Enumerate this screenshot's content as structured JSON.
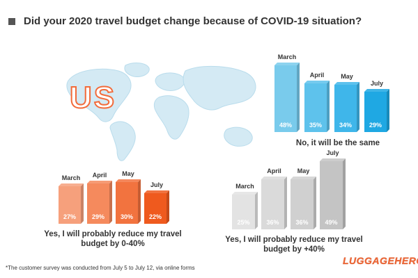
{
  "title": "Did your 2020 travel budget change because of COVID-19 situation?",
  "map_label": "US",
  "footnote": "*The customer survey was conducted from July 5 to July 12, via online forms",
  "logo": "LUGGAGEHERO",
  "colors": {
    "accent": "#f26b3a",
    "title_square": "#555555"
  },
  "chart_data": [
    {
      "type": "bar",
      "caption": "No, it will be the same",
      "categories": [
        "March",
        "April",
        "May",
        "July"
      ],
      "values": [
        48,
        35,
        34,
        29
      ],
      "value_labels": [
        "48%",
        "35%",
        "34%",
        "29%"
      ],
      "colors": [
        "#79cbec",
        "#5ec2ec",
        "#3fb6ea",
        "#1fa8e3"
      ]
    },
    {
      "type": "bar",
      "caption": "Yes, I will probably reduce my travel budget by 0-40%",
      "categories": [
        "March",
        "April",
        "May",
        "July"
      ],
      "values": [
        27,
        29,
        30,
        22
      ],
      "value_labels": [
        "27%",
        "29%",
        "30%",
        "22%"
      ],
      "colors": [
        "#f6a07c",
        "#f58a5d",
        "#f2733f",
        "#ef5a1e"
      ]
    },
    {
      "type": "bar",
      "caption": "Yes, I will probably reduce my travel budget by +40%",
      "categories": [
        "March",
        "April",
        "May",
        "July"
      ],
      "values": [
        25,
        36,
        36,
        49
      ],
      "value_labels": [
        "25%",
        "36%",
        "36%",
        "49%"
      ],
      "colors": [
        "#e3e3e3",
        "#dadada",
        "#d0d0d0",
        "#c4c4c4"
      ]
    }
  ]
}
